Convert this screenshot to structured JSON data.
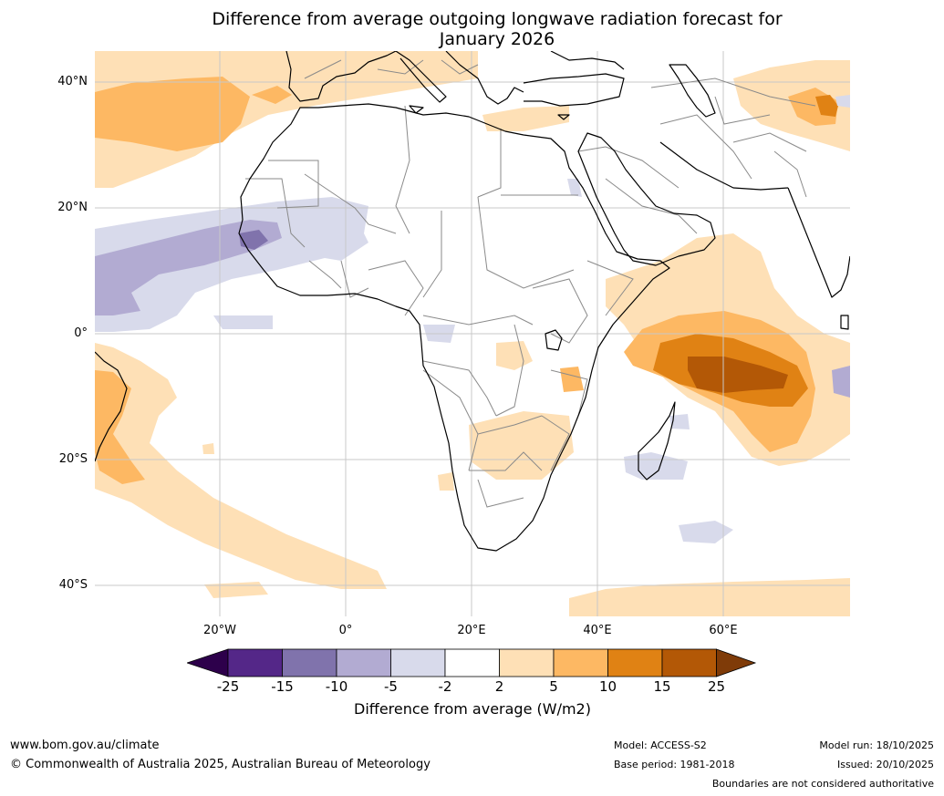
{
  "title": "Difference from average outgoing longwave radiation forecast for January 2026",
  "title_line1": "Difference from average outgoing longwave radiation forecast for",
  "title_line2": "January 2026",
  "axes": {
    "lat_labels": [
      "40°N",
      "20°N",
      "0°",
      "20°S",
      "40°S"
    ],
    "lon_labels": [
      "20°W",
      "0°",
      "20°E",
      "40°E",
      "60°E"
    ]
  },
  "colorbar": {
    "title": "Difference from average (W/m2)",
    "ticks": [
      "-25",
      "-15",
      "-10",
      "-5",
      "-2",
      "2",
      "5",
      "10",
      "15",
      "25"
    ],
    "colors": {
      "below": "#2d004b",
      "b1": "#542788",
      "b2": "#8073ac",
      "b3": "#b2abd2",
      "b4": "#d8daeb",
      "b5": "#ffffff",
      "b6": "#fee0b6",
      "b7": "#fdb863",
      "b8": "#e08214",
      "b9": "#b35806",
      "above": "#7f3b08"
    }
  },
  "footer": {
    "url": "www.bom.gov.au/climate",
    "copyright": "© Commonwealth of Australia 2025, Australian Bureau of Meteorology",
    "model": "Model: ACCESS-S2",
    "base_period": "Base period: 1981-2018",
    "model_run": "Model run: 18/10/2025",
    "issued": "Issued: 20/10/2025",
    "disclaimer": "Boundaries are not considered authoritative"
  }
}
